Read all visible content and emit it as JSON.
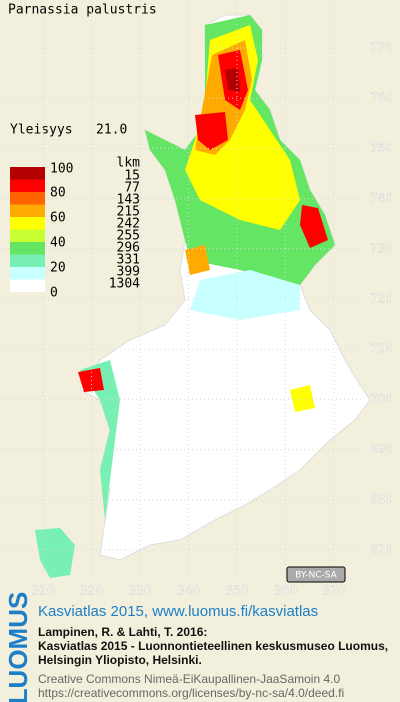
{
  "title": "Parnassia palustris",
  "frequency": {
    "label": "Yleisyys",
    "value": "21.0"
  },
  "legend": {
    "count_header": "lkm",
    "scale_labels": [
      "100",
      "80",
      "60",
      "40",
      "20",
      "0"
    ],
    "classes": [
      {
        "color": "#b40000",
        "count": "15"
      },
      {
        "color": "#ff0000",
        "count": "77"
      },
      {
        "color": "#ff6400",
        "count": "143"
      },
      {
        "color": "#ffaa00",
        "count": "215"
      },
      {
        "color": "#ffff00",
        "count": "242"
      },
      {
        "color": "#c8ff32",
        "count": "255"
      },
      {
        "color": "#64e664",
        "count": "296"
      },
      {
        "color": "#78f0b4",
        "count": "331"
      },
      {
        "color": "#c8ffff",
        "count": "399"
      },
      {
        "color": "#ffffff",
        "count": "1304"
      }
    ]
  },
  "map": {
    "y_labels": [
      "770",
      "760",
      "750",
      "740",
      "730",
      "720",
      "710",
      "700",
      "690",
      "680",
      "670"
    ],
    "x_labels": [
      "310",
      "320",
      "330",
      "340",
      "350",
      "360",
      "370"
    ]
  },
  "license_badge": "BY-NC-SA",
  "logo": "LUOMUS",
  "footer": {
    "heading": "Kasviatlas 2015, www.luomus.fi/kasviatlas",
    "citation": [
      "Lampinen, R. & Lahti, T. 2016:",
      "Kasviatlas 2015 - Luonnontieteellinen keskusmuseo Luomus,",
      "Helsingin Yliopisto, Helsinki."
    ],
    "license": [
      "Creative Commons Nimeä-EiKaupallinen-JaaSamoin 4.0",
      "https://creativecommons.org/licenses/by-nc-sa/4.0/deed.fi"
    ]
  }
}
